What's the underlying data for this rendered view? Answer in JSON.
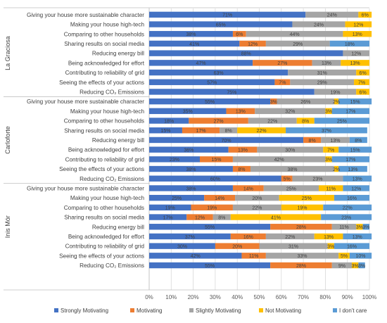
{
  "chart_data": {
    "type": "bar",
    "orientation": "horizontal",
    "stacked": true,
    "percent": true,
    "xlim": [
      0,
      100
    ],
    "x_ticks": [
      "0%",
      "10%",
      "20%",
      "30%",
      "40%",
      "50%",
      "60%",
      "70%",
      "80%",
      "90%",
      "100%"
    ],
    "grid": true,
    "legend_position": "bottom",
    "legend": [
      {
        "name": "Strongly Motivating",
        "color": "#4472c4"
      },
      {
        "name": "Motivating",
        "color": "#ed7d31"
      },
      {
        "name": "Slightly Motivating",
        "color": "#a5a5a5"
      },
      {
        "name": "Not Motivating",
        "color": "#ffc000"
      },
      {
        "name": "I don't care",
        "color": "#5b9bd5"
      }
    ],
    "groups": [
      {
        "name": "La Graciosa",
        "rows": [
          {
            "label": "Giving your house more sustainable character",
            "values": [
              71,
              0,
              24,
              6,
              0
            ],
            "labels": [
              "71%",
              "",
              "24%",
              "6%",
              ""
            ]
          },
          {
            "label": "Making your house high-tech",
            "values": [
              65,
              0,
              24,
              12,
              0
            ],
            "labels": [
              "65%",
              "",
              "24%",
              "12%",
              ""
            ]
          },
          {
            "label": "Comparing to other households",
            "values": [
              38,
              6,
              44,
              13,
              0
            ],
            "labels": [
              "38%",
              "6%",
              "44%",
              "13%",
              ""
            ]
          },
          {
            "label": "Sharing results on social media",
            "values": [
              41,
              12,
              29,
              0,
              18
            ],
            "labels": [
              "41%",
              "12%",
              "29%",
              "",
              "18%"
            ]
          },
          {
            "label": "Reducing energy bill",
            "values": [
              88,
              0,
              12,
              0,
              0
            ],
            "labels": [
              "88%",
              "",
              "12%",
              "",
              ""
            ]
          },
          {
            "label": "Being acknowledged for effort",
            "values": [
              47,
              27,
              13,
              13,
              0
            ],
            "labels": [
              "47%",
              "27%",
              "13%",
              "13%",
              ""
            ]
          },
          {
            "label": "Contributing to  reliability of grid",
            "values": [
              63,
              0,
              31,
              6,
              0
            ],
            "labels": [
              "63%",
              "",
              "31%",
              "6%",
              ""
            ]
          },
          {
            "label": "Seeing the effects of your actions",
            "values": [
              57,
              7,
              29,
              7,
              0
            ],
            "labels": [
              "57%",
              "7%",
              "29%",
              "7%",
              ""
            ]
          },
          {
            "label": "Reducing CO₂ Emissions",
            "values": [
              75,
              0,
              19,
              6,
              0
            ],
            "labels": [
              "75%",
              "",
              "19%",
              "6%",
              ""
            ]
          }
        ]
      },
      {
        "name": "Carloforte",
        "rows": [
          {
            "label": "Giving your house more sustainable character",
            "values": [
              55,
              3,
              26,
              2,
              15
            ],
            "labels": [
              "55%",
              "3%",
              "26%",
              "2%",
              "15%"
            ]
          },
          {
            "label": "Making your house high-tech",
            "values": [
              35,
              13,
              32,
              3,
              17
            ],
            "labels": [
              "35%",
              "13%",
              "32%",
              "3%",
              "17%"
            ]
          },
          {
            "label": "Comparing to other households",
            "values": [
              18,
              27,
              22,
              8,
              25
            ],
            "labels": [
              "18%",
              "27%",
              "22%",
              "8%",
              "25%"
            ]
          },
          {
            "label": "Sharing results on social media",
            "values": [
              15,
              17,
              8,
              22,
              37
            ],
            "labels": [
              "15%",
              "17%",
              "8%",
              "22%",
              "37%"
            ]
          },
          {
            "label": "Reducing energy bill",
            "values": [
              70,
              8,
              13,
              0,
              8
            ],
            "labels": [
              "70%",
              "8%",
              "13%",
              "",
              "8%"
            ]
          },
          {
            "label": "Being acknowledged for effort",
            "values": [
              36,
              13,
              30,
              7,
              15
            ],
            "labels": [
              "36%",
              "13%",
              "30%",
              "7%",
              "15%"
            ]
          },
          {
            "label": "Contributing to  reliability of grid",
            "values": [
              23,
              15,
              42,
              3,
              17
            ],
            "labels": [
              "23%",
              "15%",
              "42%",
              "3%",
              "17%"
            ]
          },
          {
            "label": "Seeing the effects of your actions",
            "values": [
              38,
              8,
              38,
              2,
              13
            ],
            "labels": [
              "38%",
              "8%",
              "38%",
              "2%",
              "13%"
            ]
          },
          {
            "label": "Reducing CO₂ Emissions",
            "values": [
              60,
              5,
              23,
              0,
              13
            ],
            "labels": [
              "60%",
              "5%",
              "23%",
              "",
              "13%"
            ]
          }
        ]
      },
      {
        "name": "Inis Mór",
        "rows": [
          {
            "label": "Giving your house more sustainable character",
            "values": [
              38,
              14,
              25,
              11,
              12
            ],
            "labels": [
              "38%",
              "14%",
              "25%",
              "11%",
              "12%"
            ]
          },
          {
            "label": "Making your house high-tech",
            "values": [
              25,
              14,
              20,
              25,
              16
            ],
            "labels": [
              "25%",
              "14%",
              "20%",
              "25%",
              "16%"
            ]
          },
          {
            "label": "Comparing to other households",
            "values": [
              19,
              19,
              22,
              19,
              22
            ],
            "labels": [
              "19%",
              "19%",
              "22%",
              "19%",
              "22%"
            ]
          },
          {
            "label": "Sharing results on social media",
            "values": [
              17,
              12,
              8,
              41,
              23
            ],
            "labels": [
              "17%",
              "12%",
              "8%",
              "41%",
              "23%"
            ]
          },
          {
            "label": "Reducing energy bill",
            "values": [
              55,
              28,
              11,
              3,
              3
            ],
            "labels": [
              "55%",
              "28%",
              "11%",
              "3%",
              "3%"
            ]
          },
          {
            "label": "Being acknowledged for effort",
            "values": [
              37,
              16,
              22,
              13,
              13
            ],
            "labels": [
              "37%",
              "16%",
              "22%",
              "13%",
              "13%"
            ]
          },
          {
            "label": "Contributing to  reliability of grid",
            "values": [
              30,
              20,
              31,
              3,
              16
            ],
            "labels": [
              "30%",
              "20%",
              "31%",
              "3%",
              "16%"
            ]
          },
          {
            "label": "Seeing the effects of your actions",
            "values": [
              42,
              11,
              33,
              5,
              10
            ],
            "labels": [
              "42%",
              "11%",
              "33%",
              "5%",
              "10%"
            ]
          },
          {
            "label": "Reducing CO₂ Emissions",
            "values": [
              55,
              28,
              9,
              3,
              3
            ],
            "labels": [
              "55%",
              "28%",
              "9%",
              "3%",
              "3%"
            ]
          }
        ]
      }
    ]
  }
}
